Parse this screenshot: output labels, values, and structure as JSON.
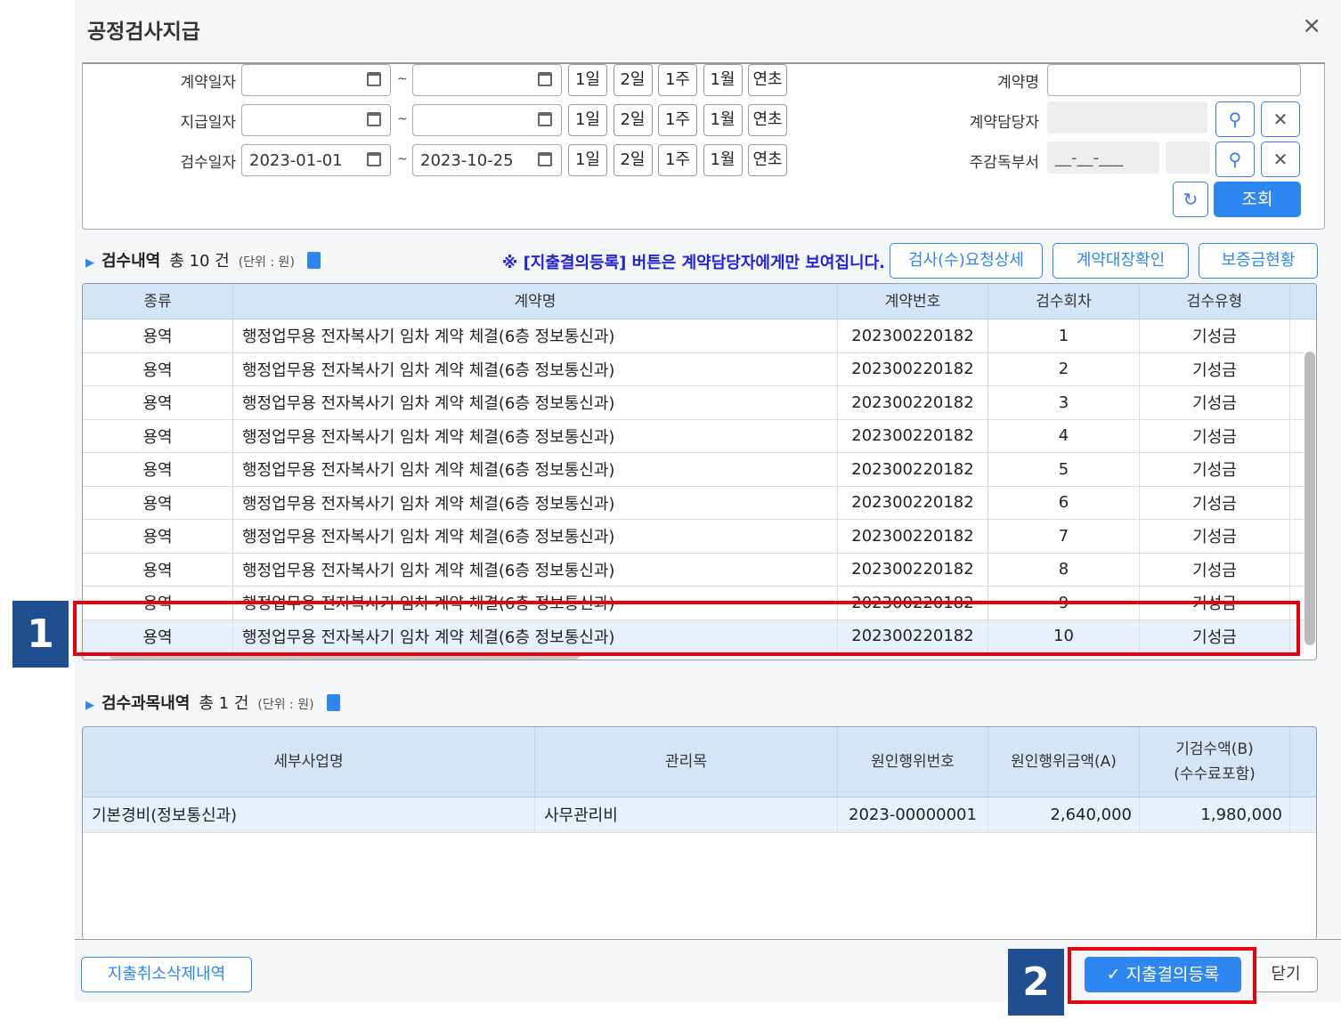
{
  "dialog": {
    "title": "공정검사지급",
    "close": "×"
  },
  "search": {
    "date_rows": [
      {
        "label": "계약일자",
        "from": "",
        "to": ""
      },
      {
        "label": "지급일자",
        "from": "",
        "to": ""
      },
      {
        "label": "검수일자",
        "from": "2023-01-01",
        "to": "2023-10-25"
      }
    ],
    "tilde": "~",
    "quick": [
      "1일",
      "2일",
      "1주",
      "1월",
      "연초"
    ],
    "contract_name_label": "계약명",
    "contract_name_value": "",
    "manager_label": "계약담당자",
    "dept_label": "주감독부서",
    "dept_placeholder": "__-__-___",
    "reset_icon": "↻",
    "search_icon": "⚲",
    "clear_icon": "✕",
    "query": "조회"
  },
  "list": {
    "title": "검수내역",
    "count": "총 10 건",
    "unit": "(단위 : 원)",
    "notice": "※ [지출결의등록] 버튼은 계약담당자에게만 보여집니다.",
    "buttons": [
      "검사(수)요청상세",
      "계약대장확인",
      "보증금현황"
    ],
    "columns": [
      "종류",
      "계약명",
      "계약번호",
      "검수회차",
      "검수유형"
    ],
    "rows": [
      [
        "용역",
        "행정업무용 전자복사기 임차 계약 체결(6층 정보통신과)",
        "202300220182",
        "1",
        "기성금"
      ],
      [
        "용역",
        "행정업무용 전자복사기 임차 계약 체결(6층 정보통신과)",
        "202300220182",
        "2",
        "기성금"
      ],
      [
        "용역",
        "행정업무용 전자복사기 임차 계약 체결(6층 정보통신과)",
        "202300220182",
        "3",
        "기성금"
      ],
      [
        "용역",
        "행정업무용 전자복사기 임차 계약 체결(6층 정보통신과)",
        "202300220182",
        "4",
        "기성금"
      ],
      [
        "용역",
        "행정업무용 전자복사기 임차 계약 체결(6층 정보통신과)",
        "202300220182",
        "5",
        "기성금"
      ],
      [
        "용역",
        "행정업무용 전자복사기 임차 계약 체결(6층 정보통신과)",
        "202300220182",
        "6",
        "기성금"
      ],
      [
        "용역",
        "행정업무용 전자복사기 임차 계약 체결(6층 정보통신과)",
        "202300220182",
        "7",
        "기성금"
      ],
      [
        "용역",
        "행정업무용 전자복사기 임차 계약 체결(6층 정보통신과)",
        "202300220182",
        "8",
        "기성금"
      ],
      [
        "용역",
        "행정업무용 전자복사기 임차 계약 체결(6층 정보통신과)",
        "202300220182",
        "9",
        "기성금"
      ],
      [
        "용역",
        "행정업무용 전자복사기 임차 계약 체결(6층 정보통신과)",
        "202300220182",
        "10",
        "기성금"
      ]
    ]
  },
  "items": {
    "title": "검수과목내역",
    "count": "총 1 건",
    "unit": "(단위 : 원)",
    "columns": [
      "세부사업명",
      "관리목",
      "원인행위번호",
      "원인행위금액(A)",
      "기검수액(B)\n(수수료포함)"
    ],
    "rows": [
      [
        "기본경비(정보통신과)",
        "사무관리비",
        "2023-00000001",
        "2,640,000",
        "1,980,000"
      ]
    ]
  },
  "footer": {
    "cancel_history": "지출취소삭제내역",
    "register": "지출결의등록",
    "register_icon": "✓",
    "close": "닫기"
  },
  "annotations": [
    "1",
    "2"
  ]
}
